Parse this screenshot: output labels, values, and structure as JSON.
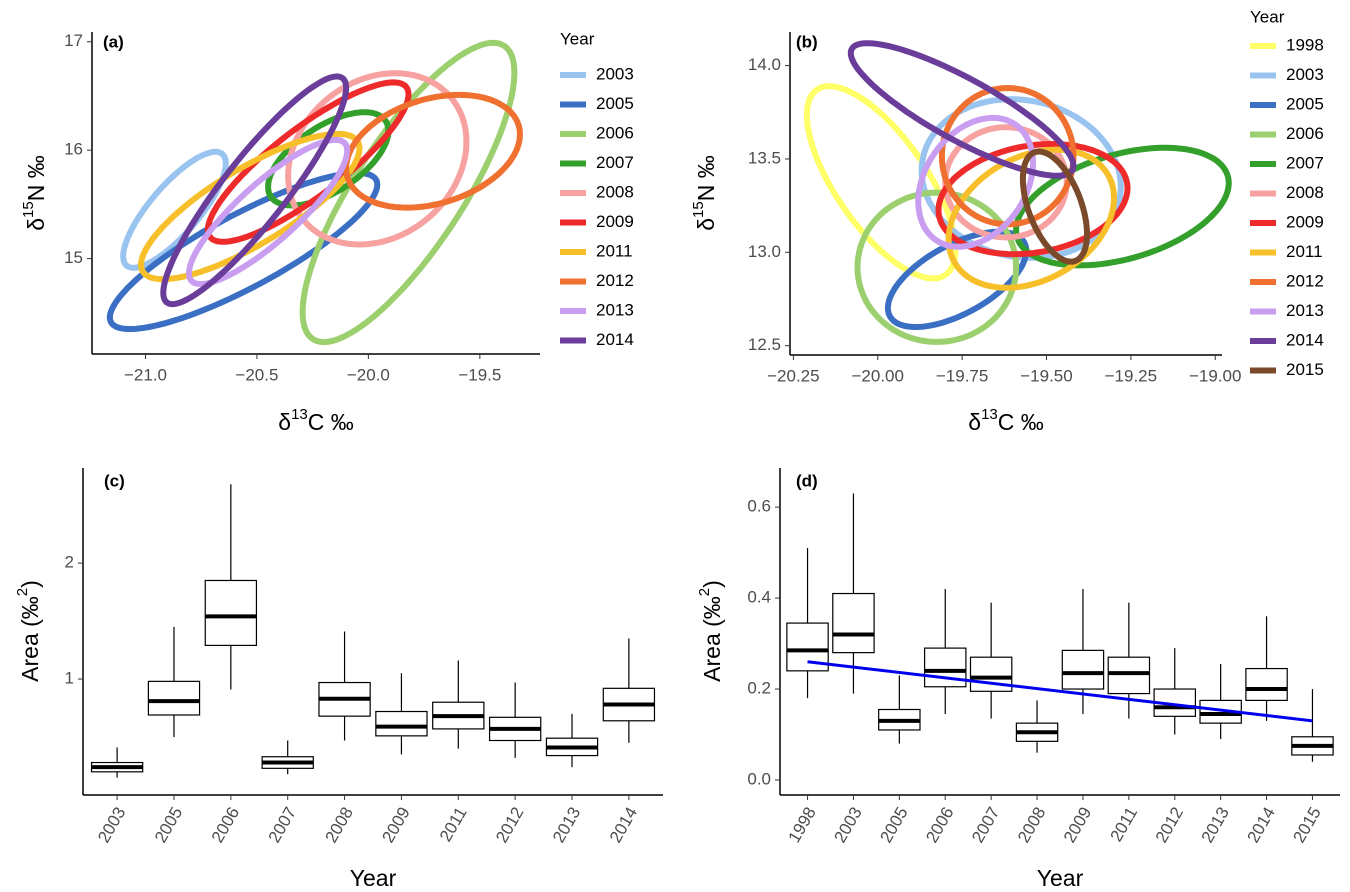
{
  "chart_data": [
    {
      "type": "ellipse",
      "panel_label": "(a)",
      "xlabel": [
        "δ",
        "13",
        "C ‰"
      ],
      "ylabel": [
        "δ",
        "15",
        "N ‰"
      ],
      "legend_title": "Year",
      "xlim": [
        -21.24,
        -19.23
      ],
      "ylim": [
        14.12,
        17.09
      ],
      "xticks": [
        {
          "value": -21,
          "label": "−21.0"
        },
        {
          "value": -20.5,
          "label": "−20.5"
        },
        {
          "value": -20,
          "label": "−20.0"
        },
        {
          "value": -19.5,
          "label": "−19.5"
        }
      ],
      "yticks": [
        15,
        16,
        17
      ],
      "series": [
        {
          "name": "2003",
          "color": "#99c4f0",
          "x_center": -20.87,
          "y_center": 15.45,
          "x_radius": 0.23,
          "y_radius": 0.535,
          "rho": 0.8
        },
        {
          "name": "2005",
          "color": "#3a6fc4",
          "x_center": -20.56,
          "y_center": 15.07,
          "x_radius": 0.6,
          "y_radius": 0.72,
          "rho": 0.85
        },
        {
          "name": "2006",
          "color": "#9ccf6e",
          "x_center": -19.82,
          "y_center": 15.61,
          "x_radius": 0.475,
          "y_radius": 1.38,
          "rho": 0.8
        },
        {
          "name": "2007",
          "color": "#33a02c",
          "x_center": -20.18,
          "y_center": 15.92,
          "x_radius": 0.27,
          "y_radius": 0.43,
          "rho": 0.6
        },
        {
          "name": "2008",
          "color": "#f7a1a1",
          "x_center": -19.96,
          "y_center": 15.92,
          "x_radius": 0.4,
          "y_radius": 0.79,
          "rho": 0.2
        },
        {
          "name": "2009",
          "color": "#ee2a2a",
          "x_center": -20.27,
          "y_center": 15.89,
          "x_radius": 0.45,
          "y_radius": 0.735,
          "rho": 0.85
        },
        {
          "name": "2011",
          "color": "#f7c02a",
          "x_center": -20.53,
          "y_center": 15.48,
          "x_radius": 0.49,
          "y_radius": 0.67,
          "rho": 0.8
        },
        {
          "name": "2012",
          "color": "#f07030",
          "x_center": -19.71,
          "y_center": 15.99,
          "x_radius": 0.39,
          "y_radius": 0.52,
          "rho": 0.3
        },
        {
          "name": "2013",
          "color": "#c99ef0",
          "x_center": -20.45,
          "y_center": 15.43,
          "x_radius": 0.355,
          "y_radius": 0.665,
          "rho": 0.85
        },
        {
          "name": "2014",
          "color": "#6a3d9a",
          "x_center": -20.51,
          "y_center": 15.63,
          "x_radius": 0.41,
          "y_radius": 1.05,
          "rho": 0.9
        }
      ]
    },
    {
      "type": "ellipse",
      "panel_label": "(b)",
      "xlabel": [
        "δ",
        "13",
        "C ‰"
      ],
      "ylabel": [
        "δ",
        "15",
        "N ‰"
      ],
      "legend_title": "Year",
      "xlim": [
        -20.26,
        -18.98
      ],
      "ylim": [
        12.45,
        14.18
      ],
      "xticks": [
        {
          "value": -20.25,
          "label": "−20.25"
        },
        {
          "value": -20,
          "label": "−20.00"
        },
        {
          "value": -19.75,
          "label": "−19.75"
        },
        {
          "value": -19.5,
          "label": "−19.50"
        },
        {
          "value": -19.25,
          "label": "−19.25"
        },
        {
          "value": -19,
          "label": "−19.00"
        }
      ],
      "yticks": [
        12.5,
        {
          "value": 13,
          "label": "13.0"
        },
        13.5,
        {
          "value": 14,
          "label": "14.0"
        }
      ],
      "series": [
        {
          "name": "1998",
          "color": "#ffff66",
          "x_center": -19.99,
          "y_center": 13.375,
          "x_radius": 0.22,
          "y_radius": 0.515,
          "rho": -0.7
        },
        {
          "name": "2003",
          "color": "#99c4f0",
          "x_center": -19.575,
          "y_center": 13.395,
          "x_radius": 0.295,
          "y_radius": 0.425,
          "rho": -0.1
        },
        {
          "name": "2005",
          "color": "#3a6fc4",
          "x_center": -19.765,
          "y_center": 12.855,
          "x_radius": 0.205,
          "y_radius": 0.255,
          "rho": 0.6
        },
        {
          "name": "2006",
          "color": "#9ccf6e",
          "x_center": -19.825,
          "y_center": 12.92,
          "x_radius": 0.235,
          "y_radius": 0.4,
          "rho": 0
        },
        {
          "name": "2007",
          "color": "#33a02c",
          "x_center": -19.275,
          "y_center": 13.245,
          "x_radius": 0.315,
          "y_radius": 0.315,
          "rho": 0.4
        },
        {
          "name": "2008",
          "color": "#f7a1a1",
          "x_center": -19.62,
          "y_center": 13.375,
          "x_radius": 0.18,
          "y_radius": 0.295,
          "rho": 0
        },
        {
          "name": "2009",
          "color": "#ee2a2a",
          "x_center": -19.54,
          "y_center": 13.285,
          "x_radius": 0.28,
          "y_radius": 0.295,
          "rho": 0.2
        },
        {
          "name": "2011",
          "color": "#f7c02a",
          "x_center": -19.545,
          "y_center": 13.18,
          "x_radius": 0.245,
          "y_radius": 0.37,
          "rho": 0.3
        },
        {
          "name": "2012",
          "color": "#f07030",
          "x_center": -19.615,
          "y_center": 13.515,
          "x_radius": 0.195,
          "y_radius": 0.365,
          "rho": 0
        },
        {
          "name": "2013",
          "color": "#c99ef0",
          "x_center": -19.71,
          "y_center": 13.375,
          "x_radius": 0.17,
          "y_radius": 0.345,
          "rho": 0.3
        },
        {
          "name": "2014",
          "color": "#6a3d9a",
          "x_center": -19.75,
          "y_center": 13.765,
          "x_radius": 0.33,
          "y_radius": 0.355,
          "rho": -0.85
        },
        {
          "name": "2015",
          "color": "#7a4a2a",
          "x_center": -19.475,
          "y_center": 13.245,
          "x_radius": 0.095,
          "y_radius": 0.295,
          "rho": -0.5
        }
      ]
    },
    {
      "type": "box",
      "panel_label": "(c)",
      "xlabel": "Year",
      "ylabel": [
        "Area (‰",
        "2",
        ")"
      ],
      "categories": [
        "2003",
        "2005",
        "2006",
        "2007",
        "2008",
        "2009",
        "2011",
        "2012",
        "2013",
        "2014"
      ],
      "ylim": [
        0,
        2.82
      ],
      "yticks": [
        1,
        2
      ],
      "whisker_low": [
        0.15,
        0.5,
        0.91,
        0.18,
        0.47,
        0.35,
        0.4,
        0.32,
        0.24,
        0.45
      ],
      "q1": [
        0.2,
        0.69,
        1.29,
        0.23,
        0.68,
        0.51,
        0.57,
        0.47,
        0.34,
        0.64
      ],
      "median": [
        0.24,
        0.81,
        1.54,
        0.28,
        0.83,
        0.59,
        0.68,
        0.57,
        0.41,
        0.78
      ],
      "q3": [
        0.28,
        0.98,
        1.85,
        0.33,
        0.97,
        0.72,
        0.8,
        0.67,
        0.49,
        0.92
      ],
      "whisker_high": [
        0.41,
        1.45,
        2.68,
        0.47,
        1.41,
        1.05,
        1.16,
        0.97,
        0.7,
        1.35
      ]
    },
    {
      "type": "box",
      "panel_label": "(d)",
      "xlabel": "Year",
      "ylabel": [
        "Area (‰",
        "2",
        ")"
      ],
      "categories": [
        "1998",
        "2003",
        "2005",
        "2006",
        "2007",
        "2008",
        "2009",
        "2011",
        "2012",
        "2013",
        "2014",
        "2015"
      ],
      "ylim": [
        -0.033,
        0.686
      ],
      "yticks": [
        {
          "value": 0,
          "label": "0.0"
        },
        0.2,
        0.4,
        0.6
      ],
      "whisker_low": [
        0.18,
        0.19,
        0.08,
        0.145,
        0.135,
        0.06,
        0.145,
        0.135,
        0.1,
        0.09,
        0.13,
        0.04
      ],
      "q1": [
        0.24,
        0.28,
        0.11,
        0.205,
        0.195,
        0.085,
        0.2,
        0.19,
        0.14,
        0.125,
        0.175,
        0.055
      ],
      "median": [
        0.285,
        0.32,
        0.13,
        0.24,
        0.225,
        0.105,
        0.235,
        0.235,
        0.16,
        0.145,
        0.2,
        0.075
      ],
      "q3": [
        0.345,
        0.41,
        0.155,
        0.29,
        0.27,
        0.125,
        0.285,
        0.27,
        0.2,
        0.175,
        0.245,
        0.095
      ],
      "whisker_high": [
        0.51,
        0.63,
        0.23,
        0.42,
        0.39,
        0.175,
        0.42,
        0.39,
        0.29,
        0.255,
        0.36,
        0.2
      ],
      "trend": {
        "color": "#0000ee",
        "values": [
          0.26,
          0.13
        ]
      }
    }
  ]
}
